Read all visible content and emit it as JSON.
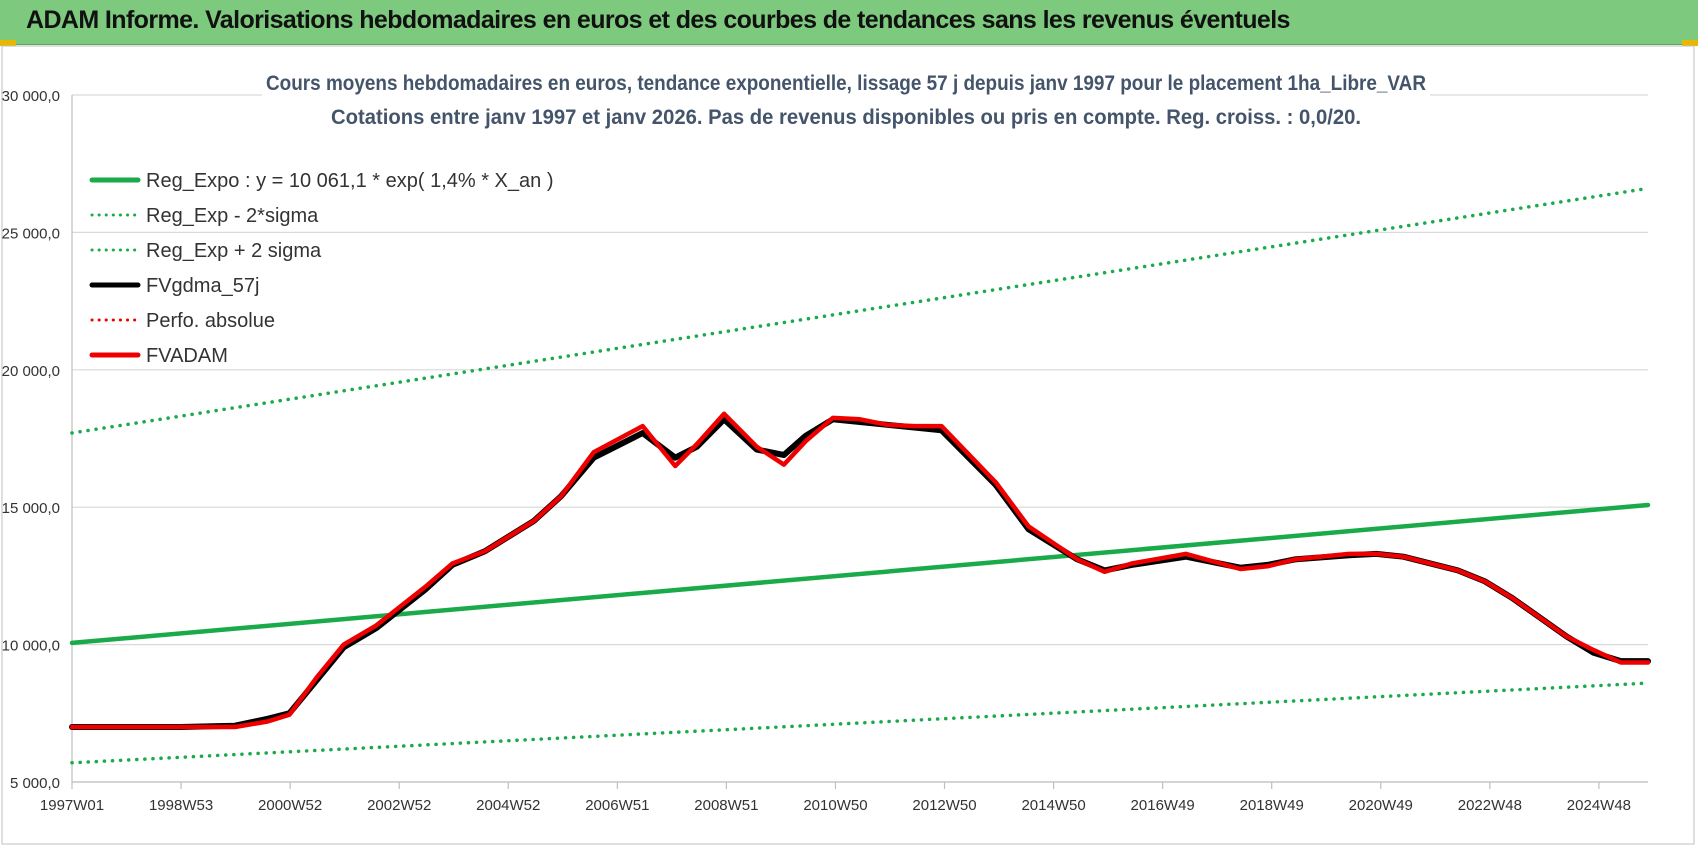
{
  "banner": {
    "title": "ADAM Informe. Valorisations hebdomadaires en euros et des courbes de tendances sans les revenus éventuels"
  },
  "colors": {
    "banner_bg": "#7dc97d",
    "reg_green": "#1aaa4a",
    "adam_red": "#ee0000",
    "fv_black": "#000000",
    "grid": "#d9d9d9",
    "title_text": "#44546a"
  },
  "chart_data": {
    "type": "line",
    "title": "Cours moyens hebdomadaires en euros, tendance exponentielle, lissage 57 j depuis janv 1997  pour le placement 1ha_Libre_VAR",
    "subtitle": "Cotations entre janv 1997 et janv 2026. Pas de revenus disponibles ou pris  en compte. Reg. croiss. : 0,0/20.",
    "xlabel": "",
    "ylabel": "",
    "x_ticks": [
      "1997W01",
      "1998W53",
      "2000W52",
      "2002W52",
      "2004W52",
      "2006W51",
      "2008W51",
      "2010W50",
      "2012W50",
      "2014W50",
      "2016W49",
      "2018W49",
      "2020W49",
      "2022W48",
      "2024W48"
    ],
    "y_ticks": [
      "5 000,0",
      "10 000,0",
      "15 000,0",
      "20 000,0",
      "25 000,0",
      "30 000,0"
    ],
    "ylim": [
      5000,
      30000
    ],
    "xlim": [
      1997.0,
      2026.0
    ],
    "grid": "horizontal",
    "legend_position": "top-left",
    "series": [
      {
        "name": "Reg_Expo : y = 10 061,1 * exp( 1,4% *  X_an )",
        "style": "solid",
        "color": "#1aaa4a",
        "x": [
          1997.0,
          2026.0
        ],
        "y": [
          10061,
          15080
        ]
      },
      {
        "name": "Reg_Exp - 2*sigma",
        "style": "dotted",
        "color": "#1aaa4a",
        "x": [
          1997.0,
          2026.0
        ],
        "y": [
          5700,
          8600
        ]
      },
      {
        "name": "Reg_Exp + 2 sigma",
        "style": "dotted",
        "color": "#1aaa4a",
        "x": [
          1997.0,
          2026.0
        ],
        "y": [
          17700,
          26600
        ]
      },
      {
        "name": "FVgdma_57j",
        "style": "solid",
        "color": "#000000",
        "x": [
          1997.0,
          1999.0,
          2000.0,
          2000.6,
          2001.0,
          2001.5,
          2002.0,
          2002.6,
          2003.5,
          2004.0,
          2004.6,
          2005.5,
          2006.0,
          2006.6,
          2007.5,
          2008.1,
          2008.5,
          2009.0,
          2009.6,
          2010.1,
          2010.5,
          2011.0,
          2011.5,
          2012.0,
          2012.5,
          2013.0,
          2014.0,
          2014.6,
          2015.5,
          2016.0,
          2016.5,
          2017.5,
          2018.5,
          2019.0,
          2019.5,
          2020.5,
          2021.0,
          2021.5,
          2022.5,
          2023.0,
          2023.5,
          2024.5,
          2025.0,
          2025.5,
          2026.0
        ],
        "y": [
          7000,
          7000,
          7050,
          7300,
          7500,
          8700,
          9900,
          10600,
          12000,
          12900,
          13400,
          14500,
          15400,
          16800,
          17700,
          16800,
          17200,
          18200,
          17100,
          16900,
          17600,
          18200,
          18100,
          18000,
          17900,
          17800,
          15800,
          14200,
          13100,
          12700,
          12900,
          13200,
          12800,
          12900,
          13100,
          13250,
          13300,
          13200,
          12700,
          12300,
          11700,
          10300,
          9700,
          9400,
          9400
        ]
      },
      {
        "name": "Perfo. absolue",
        "style": "dotted",
        "color": "#ee0000",
        "x": [],
        "y": []
      },
      {
        "name": "FVADAM",
        "style": "solid",
        "color": "#ee0000",
        "x": [
          1997.0,
          1999.0,
          2000.0,
          2000.6,
          2001.0,
          2001.5,
          2002.0,
          2002.6,
          2003.5,
          2004.0,
          2004.6,
          2005.5,
          2006.0,
          2006.6,
          2007.5,
          2008.1,
          2008.5,
          2009.0,
          2009.6,
          2010.1,
          2010.5,
          2011.0,
          2011.5,
          2012.0,
          2012.5,
          2013.0,
          2014.0,
          2014.6,
          2015.5,
          2016.0,
          2016.5,
          2017.5,
          2018.5,
          2019.0,
          2019.5,
          2020.5,
          2021.0,
          2021.5,
          2022.5,
          2023.0,
          2023.5,
          2024.5,
          2025.0,
          2025.5,
          2026.0
        ],
        "y": [
          7000,
          7000,
          7000,
          7200,
          7450,
          8800,
          10000,
          10700,
          12100,
          12950,
          13400,
          14500,
          15400,
          17000,
          17950,
          16500,
          17300,
          18400,
          17200,
          16550,
          17400,
          18250,
          18200,
          18000,
          17950,
          17950,
          15900,
          14300,
          13100,
          12650,
          12950,
          13300,
          12750,
          12850,
          13100,
          13300,
          13300,
          13200,
          12700,
          12300,
          11700,
          10300,
          9800,
          9350,
          9350
        ]
      }
    ]
  }
}
